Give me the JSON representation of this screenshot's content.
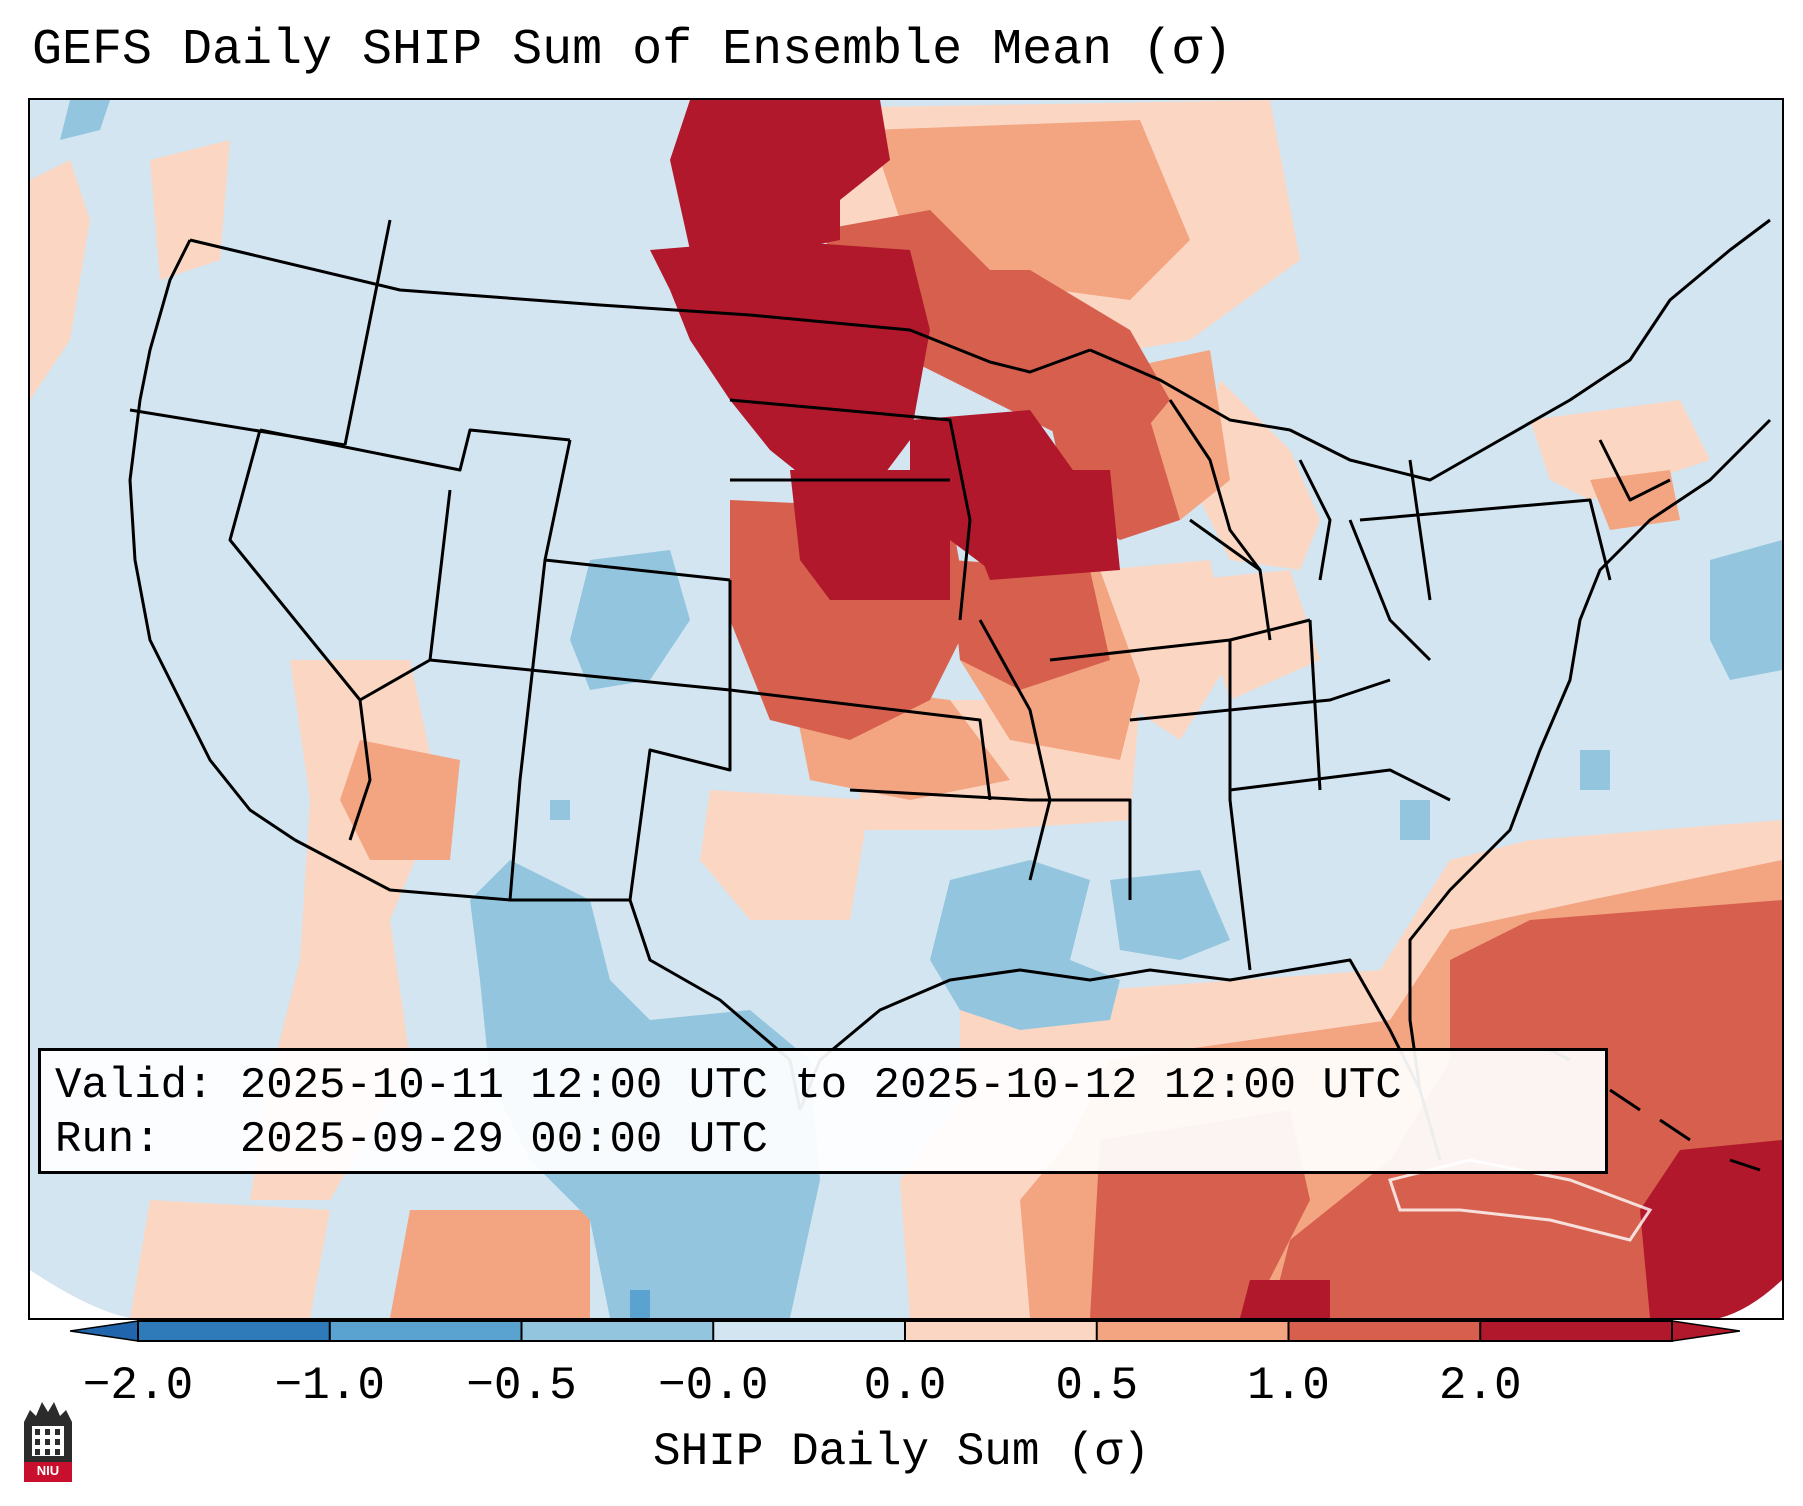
{
  "title": "GEFS Daily SHIP Sum of Ensemble Mean (σ)",
  "info": {
    "valid_label": "Valid:",
    "valid_value": "2025-10-11 12:00 UTC to 2025-10-12 12:00 UTC",
    "run_label": "Run:",
    "run_value": "2025-09-29 00:00 UTC"
  },
  "colorbar": {
    "label": "SHIP Daily Sum (σ)",
    "ticks": [
      "−2.0",
      "−1.0",
      "−0.5",
      "−0.0",
      "0.0",
      "0.5",
      "1.0",
      "2.0"
    ],
    "colors": [
      "#2f7ab8",
      "#5aa2cf",
      "#93c5de",
      "#d2e5f0",
      "#fbd7c3",
      "#f3a582",
      "#d6604d",
      "#b2182b"
    ],
    "under_color": "#2166ac",
    "over_color": "#b2182b"
  },
  "logo": {
    "text": "NIU"
  }
}
